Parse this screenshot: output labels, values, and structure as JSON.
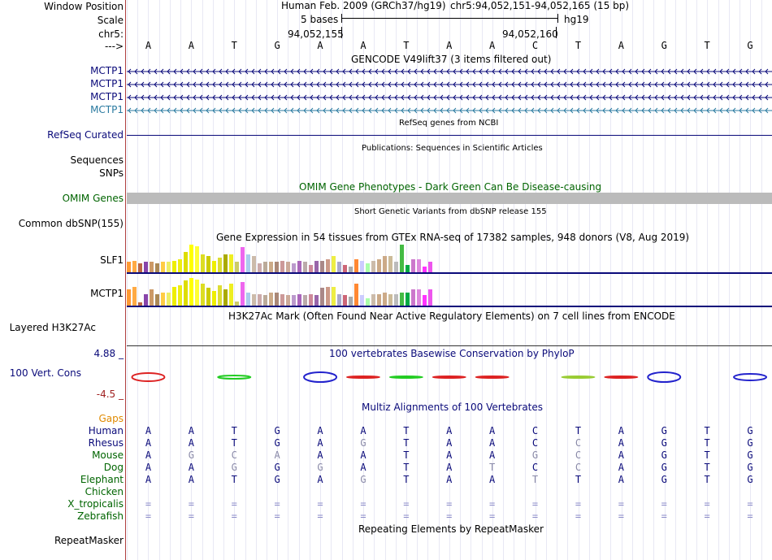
{
  "header": {
    "window_position_label": "Window Position",
    "scale_label": "Scale",
    "chrom_label": "chr5:",
    "strand_label": "--->",
    "assembly_text": "Human Feb. 2009 (GRCh37/hg19)",
    "position_text": "chr5:94,052,151-94,052,165 (15 bp)",
    "scale_text": "5 bases",
    "db_text": "hg19",
    "coord_left": "94,052,155",
    "coord_right": "94,052,160"
  },
  "bases": [
    "A",
    "A",
    "T",
    "G",
    "A",
    "A",
    "T",
    "A",
    "A",
    "C",
    "T",
    "A",
    "G",
    "T",
    "G"
  ],
  "tracks": {
    "gencode": {
      "title": "GENCODE V49lift37 (3 items filtered out)",
      "genes": [
        {
          "label": "MCTP1",
          "color": "#0a0a7a"
        },
        {
          "label": "MCTP1",
          "color": "#0a0a7a"
        },
        {
          "label": "MCTP1",
          "color": "#0a0a7a"
        },
        {
          "label": "MCTP1",
          "color": "#2a7aa0"
        }
      ]
    },
    "refseq": {
      "title": "RefSeq genes from NCBI",
      "label": "RefSeq Curated"
    },
    "publications": {
      "title": "Publications: Sequences in Scientific Articles",
      "label1": "Sequences",
      "label2": "SNPs"
    },
    "omim": {
      "title": "OMIM Gene Phenotypes - Dark Green Can Be Disease-causing",
      "label": "OMIM Genes"
    },
    "dbsnp": {
      "title": "Short Genetic Variants from dbSNP release 155",
      "label": "Common dbSNP(155)"
    },
    "gtex": {
      "title": "Gene Expression in 54 tissues from GTEx RNA-seq of 17382 samples, 948 donors (V8, Aug 2019)",
      "genes": [
        "SLF1",
        "MCTP1"
      ],
      "slf1_levels": [
        0.35,
        0.4,
        0.3,
        0.35,
        0.35,
        0.3,
        0.35,
        0.35,
        0.4,
        0.45,
        0.7,
        0.95,
        0.9,
        0.6,
        0.55,
        0.4,
        0.5,
        0.6,
        0.6,
        0.35,
        0.85,
        0.6,
        0.55,
        0.3,
        0.35,
        0.35,
        0.35,
        0.4,
        0.35,
        0.3,
        0.4,
        0.35,
        0.25,
        0.4,
        0.4,
        0.45,
        0.55,
        0.35,
        0.25,
        0.2,
        0.45,
        0.4,
        0.3,
        0.4,
        0.45,
        0.55,
        0.55,
        0.35,
        0.95,
        0.25,
        0.45,
        0.45,
        0.2,
        0.35
      ],
      "mctp1_levels": [
        0.55,
        0.65,
        0.1,
        0.4,
        0.55,
        0.4,
        0.45,
        0.45,
        0.65,
        0.7,
        0.85,
        0.95,
        0.9,
        0.75,
        0.6,
        0.5,
        0.7,
        0.55,
        0.75,
        0.15,
        0.8,
        0.45,
        0.4,
        0.4,
        0.35,
        0.45,
        0.45,
        0.4,
        0.35,
        0.35,
        0.4,
        0.35,
        0.4,
        0.35,
        0.6,
        0.65,
        0.65,
        0.4,
        0.35,
        0.3,
        0.75,
        0.35,
        0.25,
        0.4,
        0.4,
        0.45,
        0.4,
        0.4,
        0.45,
        0.45,
        0.55,
        0.55,
        0.35,
        0.55
      ],
      "colors": [
        "#ff9933",
        "#ffaa44",
        "#bb6644",
        "#8844aa",
        "#cc9966",
        "#aa8855",
        "#ffcc44",
        "#eeee66",
        "#eeee00",
        "#eeee11",
        "#dddd00",
        "#ffff00",
        "#ffff33",
        "#dddd22",
        "#cccc00",
        "#eeee00",
        "#dddd33",
        "#aaaa00",
        "#eeee22",
        "#cccc66",
        "#ee66ee",
        "#aaccee",
        "#ccbbaa",
        "#ccaaaa",
        "#bbaa99",
        "#ccaa88",
        "#aa8877",
        "#cc9999",
        "#ccaa99",
        "#bb99cc",
        "#aa66bb",
        "#bbaaaa",
        "#cc8899",
        "#9966aa",
        "#aa8888",
        "#cc9988",
        "#eeee44",
        "#aaaacc",
        "#cc6677",
        "#aaaaaa",
        "#ff8833",
        "#ccccff",
        "#aaffaa",
        "#ccbbaa",
        "#ccaa88",
        "#ccaa88",
        "#ccbb99",
        "#bbbbbb",
        "#44bb44",
        "#00aa44",
        "#cc77cc",
        "#dd88dd",
        "#ff33ff",
        "#ee55ee"
      ]
    },
    "h3k27ac": {
      "title": "H3K27Ac Mark (Often Found Near Active Regulatory Elements) on 7 cell lines from ENCODE",
      "label": "Layered H3K27Ac"
    },
    "cons": {
      "title": "100 vertebrates Basewise Conservation by PhyloP",
      "label": "100 Vert. Cons",
      "max": "4.88 _",
      "min": "-4.5 _"
    },
    "multiz": {
      "title": "Multiz Alignments of 100 Vertebrates",
      "gaps_label": "Gaps",
      "species": [
        {
          "name": "Human",
          "color": "#0a0a7a",
          "seq": [
            "A",
            "A",
            "T",
            "G",
            "A",
            "A",
            "T",
            "A",
            "A",
            "C",
            "T",
            "A",
            "G",
            "T",
            "G"
          ],
          "dim": []
        },
        {
          "name": "Rhesus",
          "color": "#0a0a7a",
          "seq": [
            "A",
            "A",
            "T",
            "G",
            "A",
            "G",
            "T",
            "A",
            "A",
            "C",
            "C",
            "A",
            "G",
            "T",
            "G"
          ],
          "dim": [
            5,
            10
          ]
        },
        {
          "name": "Mouse",
          "color": "#006400",
          "seq": [
            "A",
            "G",
            "C",
            "A",
            "A",
            "A",
            "T",
            "A",
            "A",
            "G",
            "C",
            "A",
            "G",
            "T",
            "G"
          ],
          "dim": [
            1,
            2,
            3,
            9,
            10
          ]
        },
        {
          "name": "Dog",
          "color": "#006400",
          "seq": [
            "A",
            "A",
            "G",
            "G",
            "G",
            "A",
            "T",
            "A",
            "T",
            "C",
            "C",
            "A",
            "G",
            "T",
            "G"
          ],
          "dim": [
            2,
            4,
            8,
            10
          ]
        },
        {
          "name": "Elephant",
          "color": "#006400",
          "seq": [
            "A",
            "A",
            "T",
            "G",
            "A",
            "G",
            "T",
            "A",
            "A",
            "T",
            "T",
            "A",
            "G",
            "T",
            "G"
          ],
          "dim": [
            5,
            9
          ]
        },
        {
          "name": "Chicken",
          "color": "#006400",
          "seq": [],
          "dim": []
        },
        {
          "name": "X_tropicalis",
          "color": "#006400",
          "seq": [
            "=",
            "=",
            "=",
            "=",
            "=",
            "=",
            "=",
            "=",
            "=",
            "=",
            "=",
            "=",
            "=",
            "=",
            "="
          ],
          "dim": []
        },
        {
          "name": "Zebrafish",
          "color": "#006400",
          "seq": [
            "=",
            "=",
            "=",
            "=",
            "=",
            "=",
            "=",
            "=",
            "=",
            "=",
            "=",
            "=",
            "=",
            "=",
            "="
          ],
          "dim": []
        }
      ]
    },
    "repeatmasker": {
      "title": "Repeating Elements by RepeatMasker",
      "label": "RepeatMasker"
    }
  },
  "colors": {
    "navy": "#0a0a7a",
    "dark_green": "#006400",
    "gaps_orange": "#e08a00",
    "omim_gray": "#bbbbbb"
  }
}
